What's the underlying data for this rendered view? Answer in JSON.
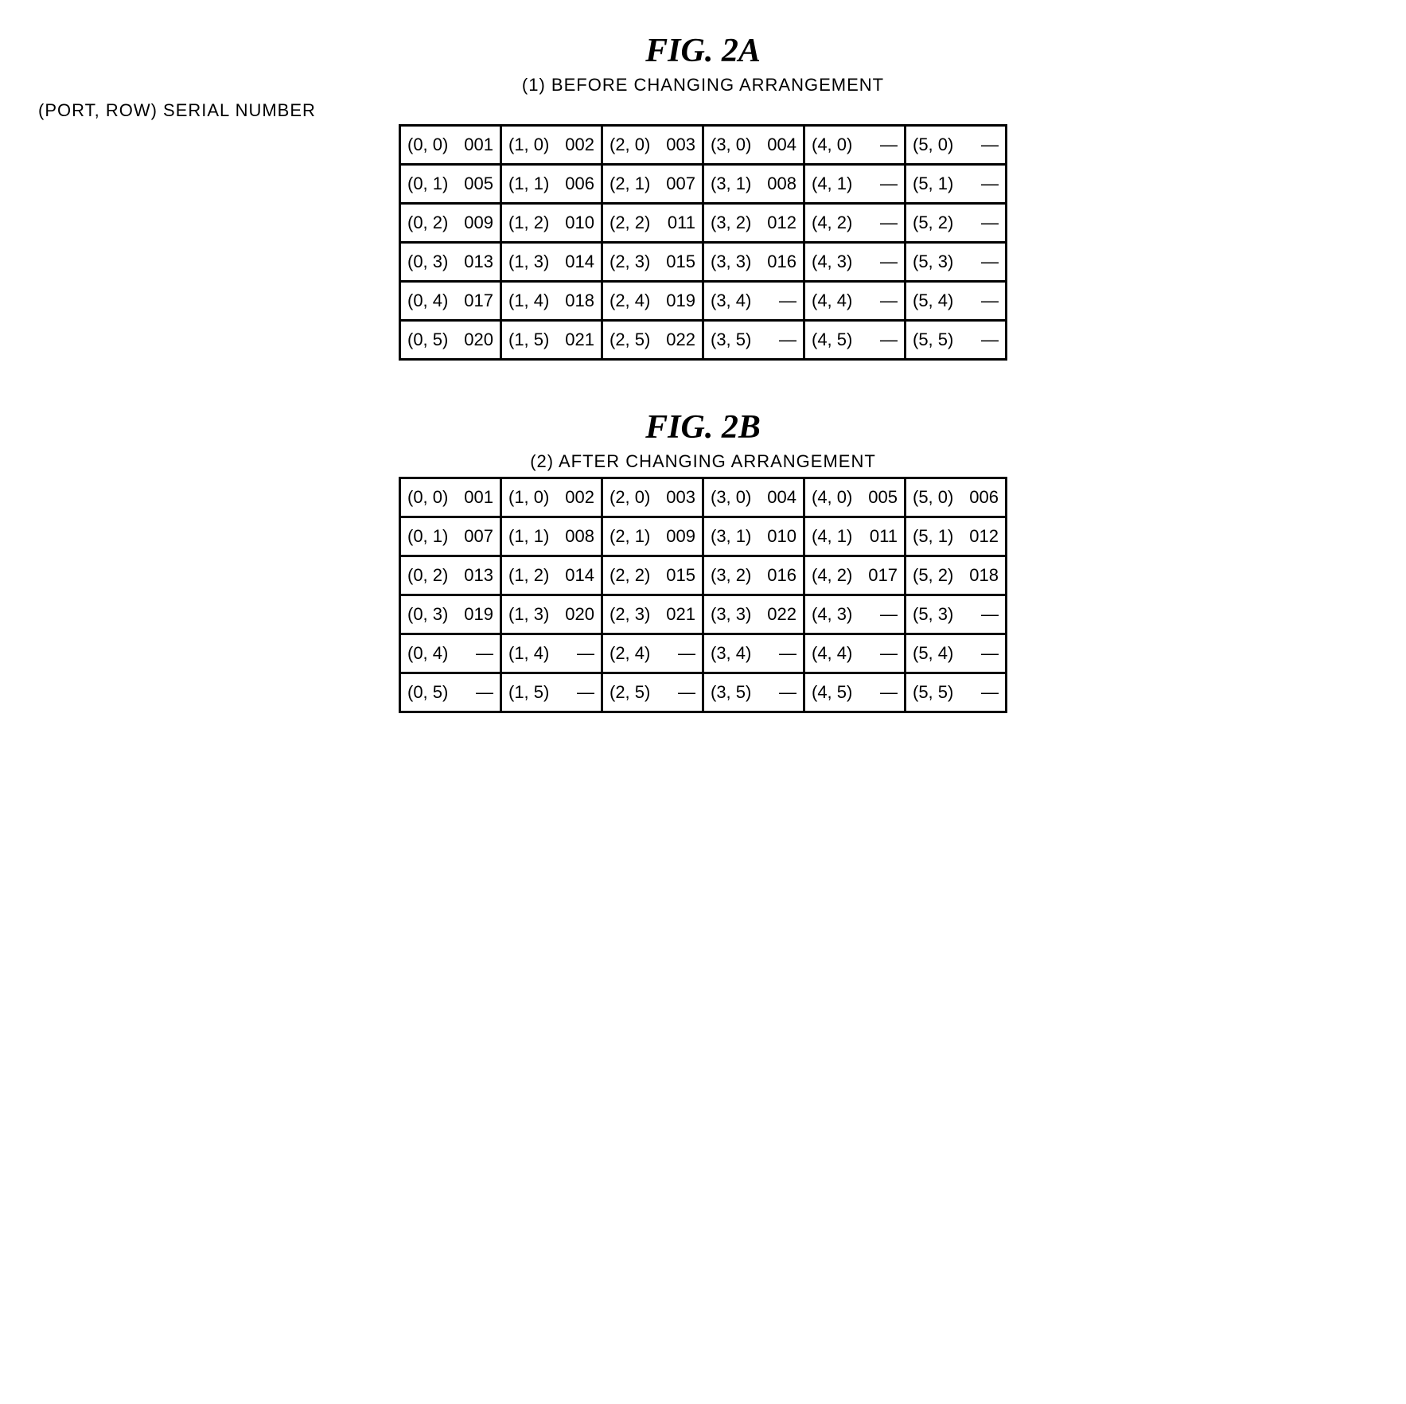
{
  "figA": {
    "title": "FIG. 2A",
    "subtitle": "(1) BEFORE CHANGING ARRANGEMENT",
    "header": "(PORT, ROW) SERIAL NUMBER",
    "rows": [
      [
        {
          "p": "(0, 0)",
          "s": "001"
        },
        {
          "p": "(1, 0)",
          "s": "002"
        },
        {
          "p": "(2, 0)",
          "s": "003"
        },
        {
          "p": "(3, 0)",
          "s": "004"
        },
        {
          "p": "(4, 0)",
          "s": "—"
        },
        {
          "p": "(5, 0)",
          "s": "—"
        }
      ],
      [
        {
          "p": "(0, 1)",
          "s": "005"
        },
        {
          "p": "(1, 1)",
          "s": "006"
        },
        {
          "p": "(2, 1)",
          "s": "007"
        },
        {
          "p": "(3, 1)",
          "s": "008"
        },
        {
          "p": "(4, 1)",
          "s": "—"
        },
        {
          "p": "(5, 1)",
          "s": "—"
        }
      ],
      [
        {
          "p": "(0, 2)",
          "s": "009"
        },
        {
          "p": "(1, 2)",
          "s": "010"
        },
        {
          "p": "(2, 2)",
          "s": "011"
        },
        {
          "p": "(3, 2)",
          "s": "012"
        },
        {
          "p": "(4, 2)",
          "s": "—"
        },
        {
          "p": "(5, 2)",
          "s": "—"
        }
      ],
      [
        {
          "p": "(0, 3)",
          "s": "013"
        },
        {
          "p": "(1, 3)",
          "s": "014"
        },
        {
          "p": "(2, 3)",
          "s": "015"
        },
        {
          "p": "(3, 3)",
          "s": "016"
        },
        {
          "p": "(4, 3)",
          "s": "—"
        },
        {
          "p": "(5, 3)",
          "s": "—"
        }
      ],
      [
        {
          "p": "(0, 4)",
          "s": "017"
        },
        {
          "p": "(1, 4)",
          "s": "018"
        },
        {
          "p": "(2, 4)",
          "s": "019"
        },
        {
          "p": "(3, 4)",
          "s": "—"
        },
        {
          "p": "(4, 4)",
          "s": "—"
        },
        {
          "p": "(5, 4)",
          "s": "—"
        }
      ],
      [
        {
          "p": "(0, 5)",
          "s": "020"
        },
        {
          "p": "(1, 5)",
          "s": "021"
        },
        {
          "p": "(2, 5)",
          "s": "022"
        },
        {
          "p": "(3, 5)",
          "s": "—"
        },
        {
          "p": "(4, 5)",
          "s": "—"
        },
        {
          "p": "(5, 5)",
          "s": "—"
        }
      ]
    ]
  },
  "figB": {
    "title": "FIG. 2B",
    "subtitle": "(2) AFTER CHANGING ARRANGEMENT",
    "rows": [
      [
        {
          "p": "(0, 0)",
          "s": "001"
        },
        {
          "p": "(1, 0)",
          "s": "002"
        },
        {
          "p": "(2, 0)",
          "s": "003"
        },
        {
          "p": "(3, 0)",
          "s": "004"
        },
        {
          "p": "(4, 0)",
          "s": "005"
        },
        {
          "p": "(5, 0)",
          "s": "006"
        }
      ],
      [
        {
          "p": "(0, 1)",
          "s": "007"
        },
        {
          "p": "(1, 1)",
          "s": "008"
        },
        {
          "p": "(2, 1)",
          "s": "009"
        },
        {
          "p": "(3, 1)",
          "s": "010"
        },
        {
          "p": "(4, 1)",
          "s": "011"
        },
        {
          "p": "(5, 1)",
          "s": "012"
        }
      ],
      [
        {
          "p": "(0, 2)",
          "s": "013"
        },
        {
          "p": "(1, 2)",
          "s": "014"
        },
        {
          "p": "(2, 2)",
          "s": "015"
        },
        {
          "p": "(3, 2)",
          "s": "016"
        },
        {
          "p": "(4, 2)",
          "s": "017"
        },
        {
          "p": "(5, 2)",
          "s": "018"
        }
      ],
      [
        {
          "p": "(0, 3)",
          "s": "019"
        },
        {
          "p": "(1, 3)",
          "s": "020"
        },
        {
          "p": "(2, 3)",
          "s": "021"
        },
        {
          "p": "(3, 3)",
          "s": "022"
        },
        {
          "p": "(4, 3)",
          "s": "—"
        },
        {
          "p": "(5, 3)",
          "s": "—"
        }
      ],
      [
        {
          "p": "(0, 4)",
          "s": "—"
        },
        {
          "p": "(1, 4)",
          "s": "—"
        },
        {
          "p": "(2, 4)",
          "s": "—"
        },
        {
          "p": "(3, 4)",
          "s": "—"
        },
        {
          "p": "(4, 4)",
          "s": "—"
        },
        {
          "p": "(5, 4)",
          "s": "—"
        }
      ],
      [
        {
          "p": "(0, 5)",
          "s": "—"
        },
        {
          "p": "(1, 5)",
          "s": "—"
        },
        {
          "p": "(2, 5)",
          "s": "—"
        },
        {
          "p": "(3, 5)",
          "s": "—"
        },
        {
          "p": "(4, 5)",
          "s": "—"
        },
        {
          "p": "(5, 5)",
          "s": "—"
        }
      ]
    ]
  }
}
